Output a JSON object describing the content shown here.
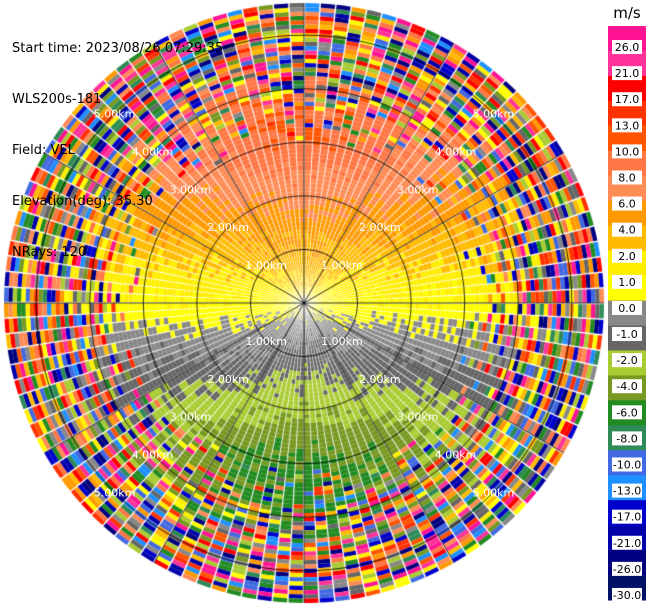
{
  "header": {
    "start_time": "Start time: 2023/08/26 07:29:35",
    "instrument": "WLS200s-181",
    "field": "Field: VEL",
    "elevation": "Elevation(deg): 35.30",
    "nrays": "NRays: 120"
  },
  "colorbar": {
    "unit": "m/s",
    "labels": [
      "26.0",
      "21.0",
      "17.0",
      "13.0",
      "10.0",
      "8.0",
      "6.0",
      "4.0",
      "2.0",
      "1.0",
      "0.0",
      "-1.0",
      "-2.0",
      "-4.0",
      "-6.0",
      "-8.0",
      "-10.0",
      "-13.0",
      "-17.0",
      "-21.0",
      "-26.0",
      "-30.0"
    ],
    "colors": [
      "#ff1493",
      "#ff3399",
      "#ff0000",
      "#ff3300",
      "#ff5500",
      "#ff7744",
      "#ff8c55",
      "#ff9900",
      "#ffbb00",
      "#ffee00",
      "#ffff00",
      "#888888",
      "#666666",
      "#aacc33",
      "#779922",
      "#228b22",
      "#2e8b57",
      "#4169e1",
      "#1e90ff",
      "#0000cd",
      "#0000aa",
      "#000080",
      "#001166"
    ]
  },
  "chart_data": {
    "type": "heatmap",
    "projection": "polar PPI",
    "field": "VEL",
    "units": "m/s",
    "n_rays": 120,
    "range_rings_km": [
      "1.00km",
      "2.00km",
      "3.00km",
      "4.00km",
      "5.00km"
    ],
    "max_range_km": 5.6,
    "value_range": [
      -30,
      26
    ],
    "pattern": "near-field winds: positive (orange/red) toward top, near 0 (grey) across middle, negative (green/blue) toward bottom; outer ranges noisy"
  }
}
